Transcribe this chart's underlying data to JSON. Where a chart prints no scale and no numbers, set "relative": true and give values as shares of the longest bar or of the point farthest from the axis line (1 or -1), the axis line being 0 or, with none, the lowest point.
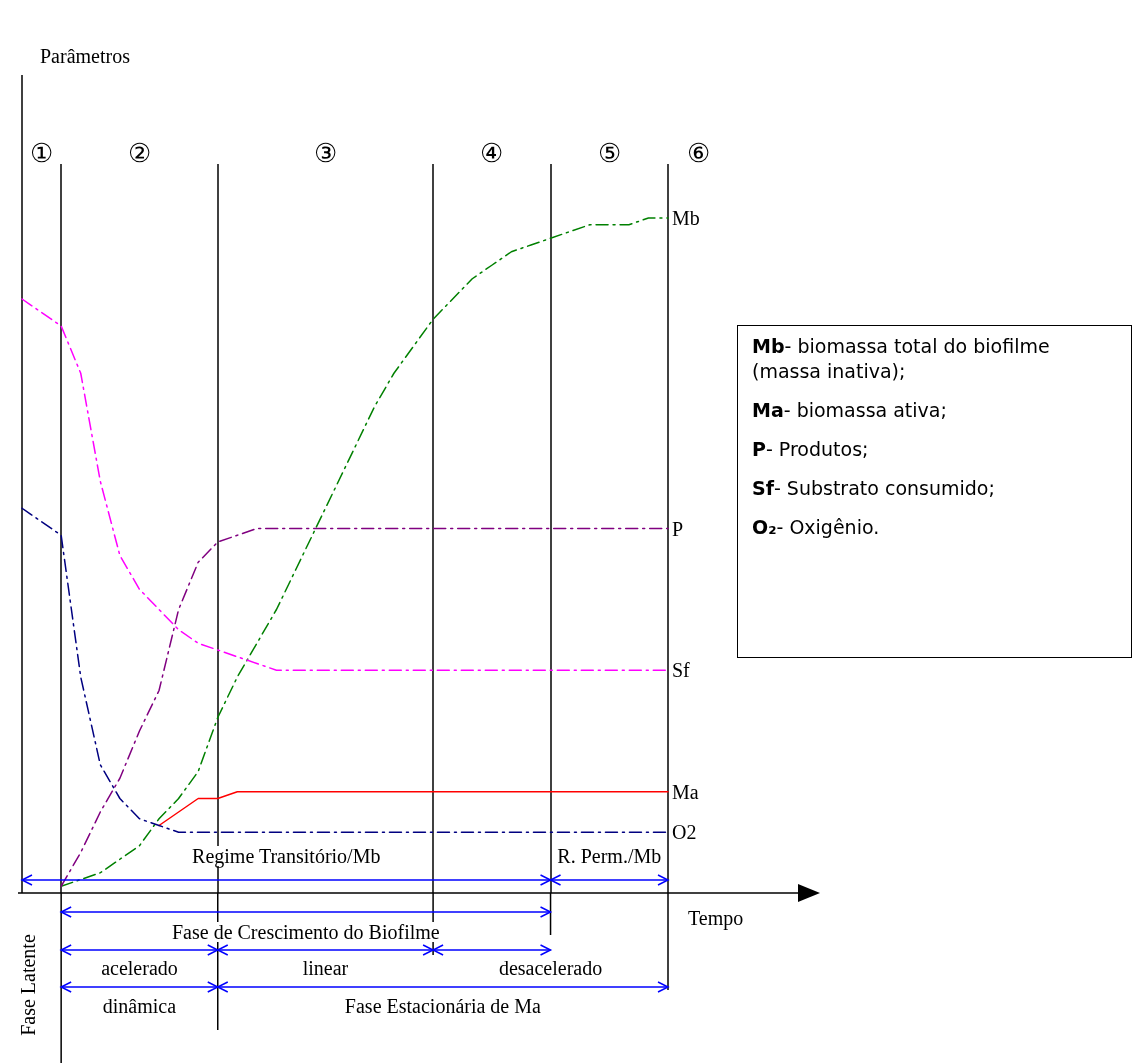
{
  "chart_data": {
    "type": "line",
    "relative": true,
    "xlabel": "Tempo",
    "marker": "none",
    "grid": "x",
    "categories": [
      null,
      null,
      null,
      null,
      null,
      null,
      null,
      null,
      null,
      null,
      null,
      null,
      null,
      null,
      null,
      null,
      null,
      null,
      null,
      null,
      null,
      null,
      null,
      null,
      null,
      null,
      null,
      null,
      null,
      null,
      null,
      null,
      null,
      null
    ],
    "series": [
      {
        "name": "Mb",
        "color": "#008000",
        "line_style": "dashed",
        "values": [
          null,
          null,
          0.01,
          0.02,
          0.03,
          0.05,
          0.07,
          0.11,
          0.14,
          0.18,
          0.26,
          0.32,
          0.37,
          0.42,
          0.48,
          0.54,
          0.6,
          0.66,
          0.72,
          0.77,
          0.81,
          0.85,
          0.88,
          0.91,
          0.93,
          0.95,
          0.96,
          0.97,
          0.98,
          0.99,
          0.99,
          0.99,
          1,
          1
        ]
      },
      {
        "name": "P",
        "color": "#800080",
        "line_style": "dashed",
        "values": [
          null,
          null,
          0.01,
          0.06,
          0.12,
          0.17,
          0.24,
          0.3,
          0.42,
          0.49,
          0.52,
          0.53,
          0.54,
          0.54,
          0.54,
          0.54,
          0.54,
          0.54,
          0.54,
          0.54,
          0.54,
          0.54,
          0.54,
          0.54,
          0.54,
          0.54,
          0.54,
          0.54,
          0.54,
          0.54,
          0.54,
          0.54,
          0.54,
          0.54
        ]
      },
      {
        "name": "Sf",
        "color": "#ff00ff",
        "line_style": "dashed",
        "values": [
          0.88,
          0.86,
          0.84,
          0.77,
          0.61,
          0.5,
          0.45,
          0.42,
          0.39,
          0.37,
          0.36,
          0.35,
          0.34,
          0.33,
          0.33,
          0.33,
          0.33,
          0.33,
          0.33,
          0.33,
          0.33,
          0.33,
          0.33,
          0.33,
          0.33,
          0.33,
          0.33,
          0.33,
          0.33,
          0.33,
          0.33,
          0.33,
          0.33,
          0.33
        ]
      },
      {
        "name": "Ma",
        "color": "#ff0000",
        "line_style": "solid",
        "values": [
          null,
          null,
          null,
          null,
          null,
          null,
          null,
          0.1,
          0.12,
          0.14,
          0.14,
          0.15,
          0.15,
          0.15,
          0.15,
          0.15,
          0.15,
          0.15,
          0.15,
          0.15,
          0.15,
          0.15,
          0.15,
          0.15,
          0.15,
          0.15,
          0.15,
          0.15,
          0.15,
          0.15,
          0.15,
          0.15,
          0.15,
          0.15
        ]
      },
      {
        "name": "O2",
        "color": "#000080",
        "line_style": "dashed",
        "values": [
          0.57,
          0.55,
          0.53,
          0.32,
          0.19,
          0.14,
          0.11,
          0.1,
          0.09,
          0.09,
          0.09,
          0.09,
          0.09,
          0.09,
          0.09,
          0.09,
          0.09,
          0.09,
          0.09,
          0.09,
          0.09,
          0.09,
          0.09,
          0.09,
          0.09,
          0.09,
          0.09,
          0.09,
          0.09,
          0.09,
          0.09,
          0.09,
          0.09,
          0.09
        ]
      }
    ],
    "annotations": [
      "①",
      "②",
      "③",
      "④",
      "⑤",
      "⑥",
      "Regime Transitório/Mb",
      "R. Perm./Mb",
      "Fase de Crescimento do Biofilme",
      "acelerado",
      "linear",
      "desacelerado",
      "dinâmica",
      "Fase Estacionária de Ma",
      "Fase Latente",
      "Mb- biomassa total do biofilme (massa inativa);",
      "Ma- biomassa ativa;",
      "P- Produtos;",
      "Sf- Substrato consumido;",
      "O₂- Oxigênio.",
      "Parâmetros"
    ]
  }
}
